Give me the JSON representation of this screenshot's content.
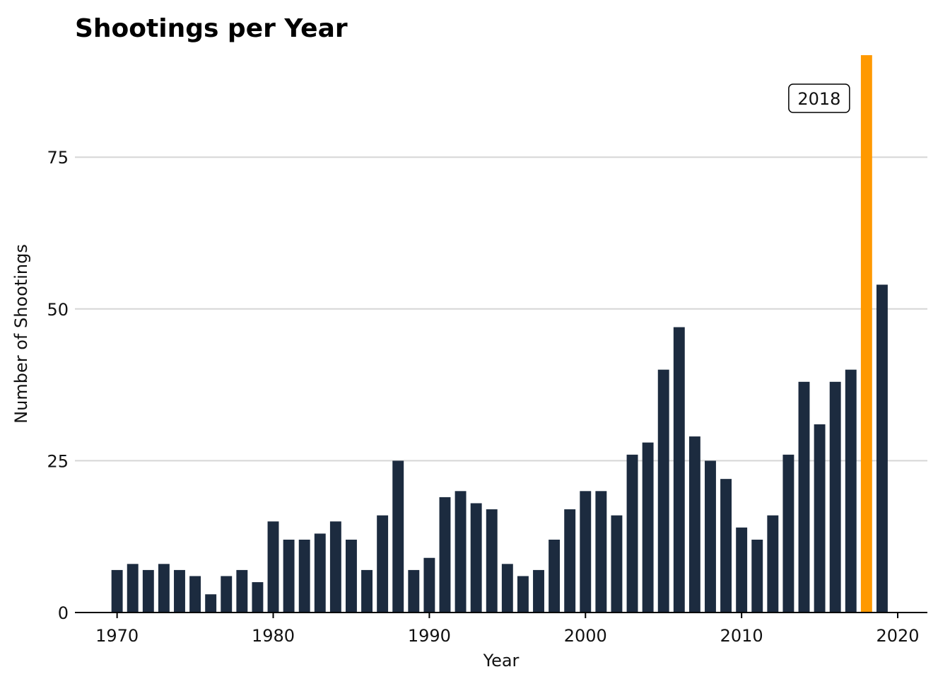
{
  "chart_data": {
    "type": "bar",
    "title": "Shootings per Year",
    "xlabel": "Year",
    "ylabel": "Number of Shootings",
    "x": [
      1970,
      1971,
      1972,
      1973,
      1974,
      1975,
      1976,
      1977,
      1978,
      1979,
      1980,
      1981,
      1982,
      1983,
      1984,
      1985,
      1986,
      1987,
      1988,
      1989,
      1990,
      1991,
      1992,
      1993,
      1994,
      1995,
      1996,
      1997,
      1998,
      1999,
      2000,
      2001,
      2002,
      2003,
      2004,
      2005,
      2006,
      2007,
      2008,
      2009,
      2010,
      2011,
      2012,
      2013,
      2014,
      2015,
      2016,
      2017,
      2018,
      2019
    ],
    "values": [
      7,
      8,
      7,
      8,
      7,
      6,
      3,
      6,
      7,
      5,
      15,
      12,
      12,
      13,
      15,
      12,
      7,
      16,
      25,
      7,
      9,
      19,
      20,
      18,
      17,
      8,
      6,
      7,
      12,
      17,
      20,
      20,
      16,
      26,
      28,
      40,
      47,
      29,
      25,
      22,
      14,
      12,
      16,
      26,
      38,
      31,
      38,
      40,
      94,
      54
    ],
    "xlim": [
      1967.3,
      2021.9
    ],
    "ylim": [
      0,
      92.5
    ],
    "x_ticks": [
      1970,
      1980,
      1990,
      2000,
      2010,
      2020
    ],
    "y_ticks": [
      0,
      25,
      50,
      75
    ],
    "highlight": {
      "x": 2018,
      "label": "2018",
      "color": "#FF9900"
    },
    "bar_color": "#1C2B3F",
    "grid": "horizontal",
    "gridline_color": "#D6D6D6"
  }
}
